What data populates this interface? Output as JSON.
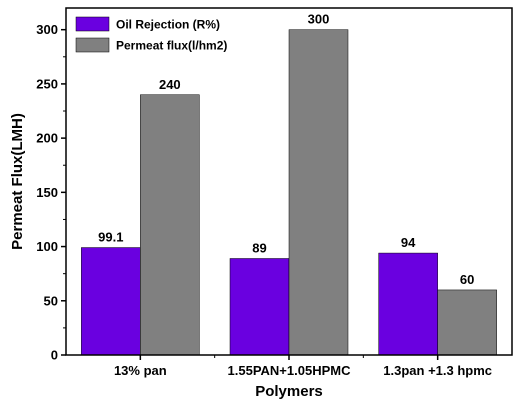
{
  "chart_data": {
    "type": "bar",
    "categories": [
      "13% pan",
      "1.55PAN+1.05HPMC",
      "1.3pan +1.3 hpmc"
    ],
    "series": [
      {
        "name": "Oil Rejection (R%)",
        "values": [
          99.1,
          89,
          94
        ],
        "labels": [
          "99.1",
          "89",
          "94"
        ],
        "color": "#6a00e0"
      },
      {
        "name": "Permeat flux(l/hm2)",
        "values": [
          240,
          300,
          60
        ],
        "labels": [
          "240",
          "300",
          "60"
        ],
        "color": "#808080"
      }
    ],
    "xlabel": "Polymers",
    "ylabel": "Permeat Flux(LMH)",
    "ylim": [
      0,
      320
    ],
    "yticks": [
      0,
      50,
      100,
      150,
      200,
      250,
      300
    ],
    "legend_position": "top-left",
    "grid": false
  }
}
